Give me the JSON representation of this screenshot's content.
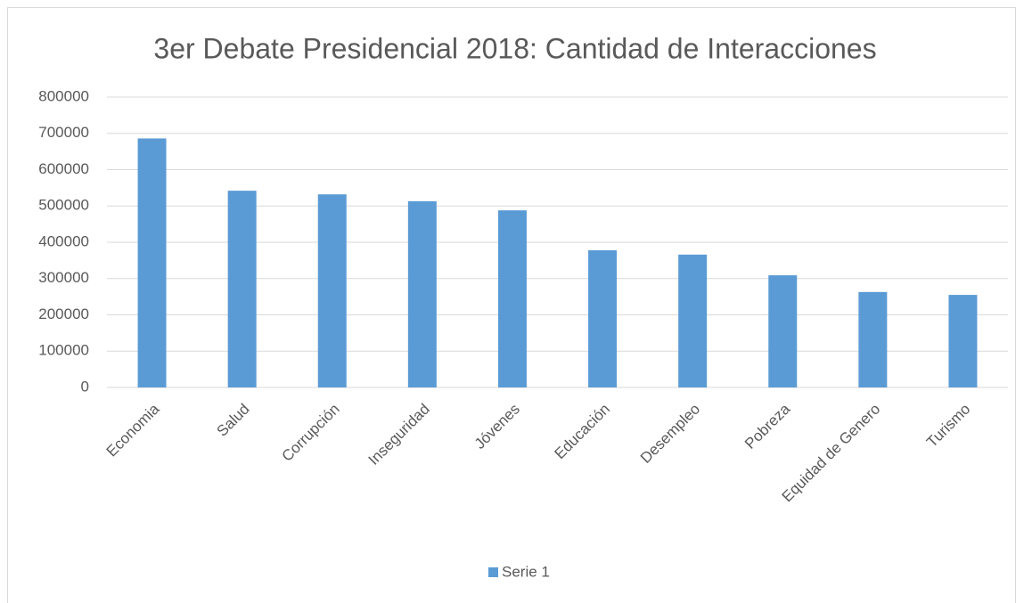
{
  "chart_data": {
    "type": "bar",
    "title": "3er Debate Presidencial 2018: Cantidad de Interacciones",
    "categories": [
      "Economia",
      "Salud",
      "Corrupción",
      "Inseguridad",
      "Jóvenes",
      "Educación",
      "Desempleo",
      "Pobreza",
      "Equidad de Genero",
      "Turismo"
    ],
    "series": [
      {
        "name": "Serie 1",
        "color": "#5b9bd5",
        "values": [
          686000,
          542000,
          532000,
          513000,
          488000,
          378000,
          366000,
          309000,
          263000,
          255000
        ]
      }
    ],
    "ylim": [
      0,
      800000
    ],
    "yticks": [
      0,
      100000,
      200000,
      300000,
      400000,
      500000,
      600000,
      700000,
      800000
    ],
    "grid": true,
    "legend": "bottom"
  }
}
